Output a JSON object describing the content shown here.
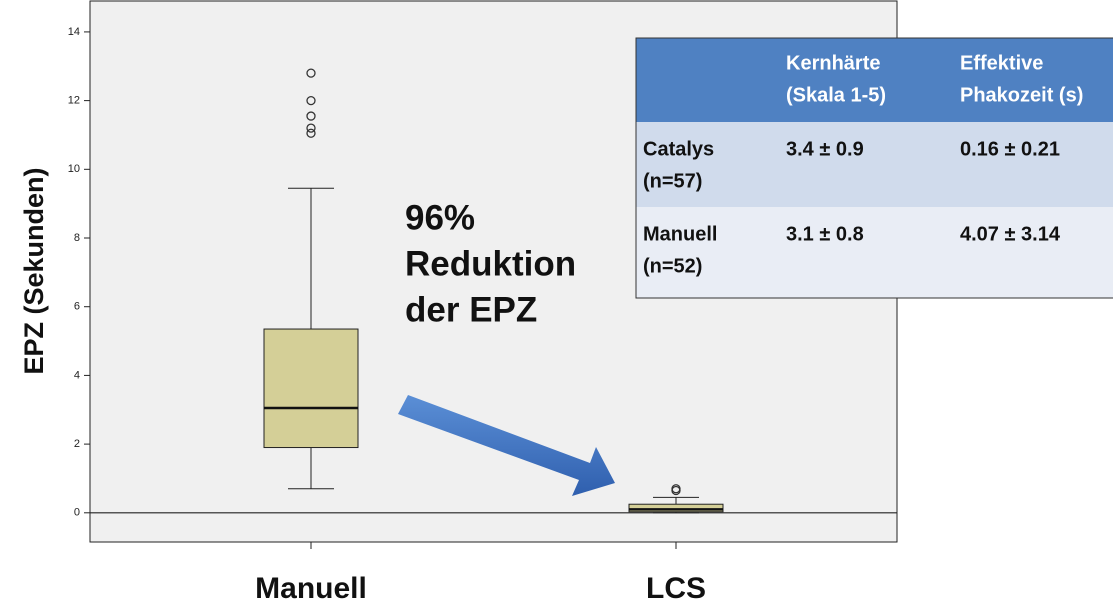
{
  "chart_data": {
    "type": "box",
    "ylabel": "EPZ (Sekunden)",
    "categories": [
      "Manuell",
      "LCS"
    ],
    "boxes": [
      {
        "whislo": 0.7,
        "q1": 1.9,
        "med": 3.05,
        "q3": 5.35,
        "whishi": 9.45,
        "fliers": [
          11.05,
          11.2,
          11.55,
          12.0,
          12.8
        ]
      },
      {
        "whislo": 0.0,
        "q1": 0.03,
        "med": 0.1,
        "q3": 0.25,
        "whishi": 0.45,
        "fliers": [
          0.65,
          0.7
        ]
      }
    ],
    "color": "#d4cf97",
    "ylim": [
      -0.85,
      14.9
    ],
    "yticks": [
      0,
      2,
      4,
      6,
      8,
      10,
      12,
      14
    ],
    "annotation": [
      "96%",
      "Reduktion",
      "der EPZ"
    ],
    "table": {
      "header": [
        "",
        [
          "Kernhärte",
          "(Skala  1-5)"
        ],
        [
          "Effektive",
          "Phakozeit (s)"
        ]
      ],
      "rows": [
        [
          [
            "Catalys",
            "(n=57)"
          ],
          "3.4  ± 0.9",
          "0.16  ± 0.21"
        ],
        [
          [
            "Manuell",
            "(n=52)"
          ],
          "3.1  ± 0.8",
          "4.07  ± 3.14"
        ]
      ]
    }
  }
}
